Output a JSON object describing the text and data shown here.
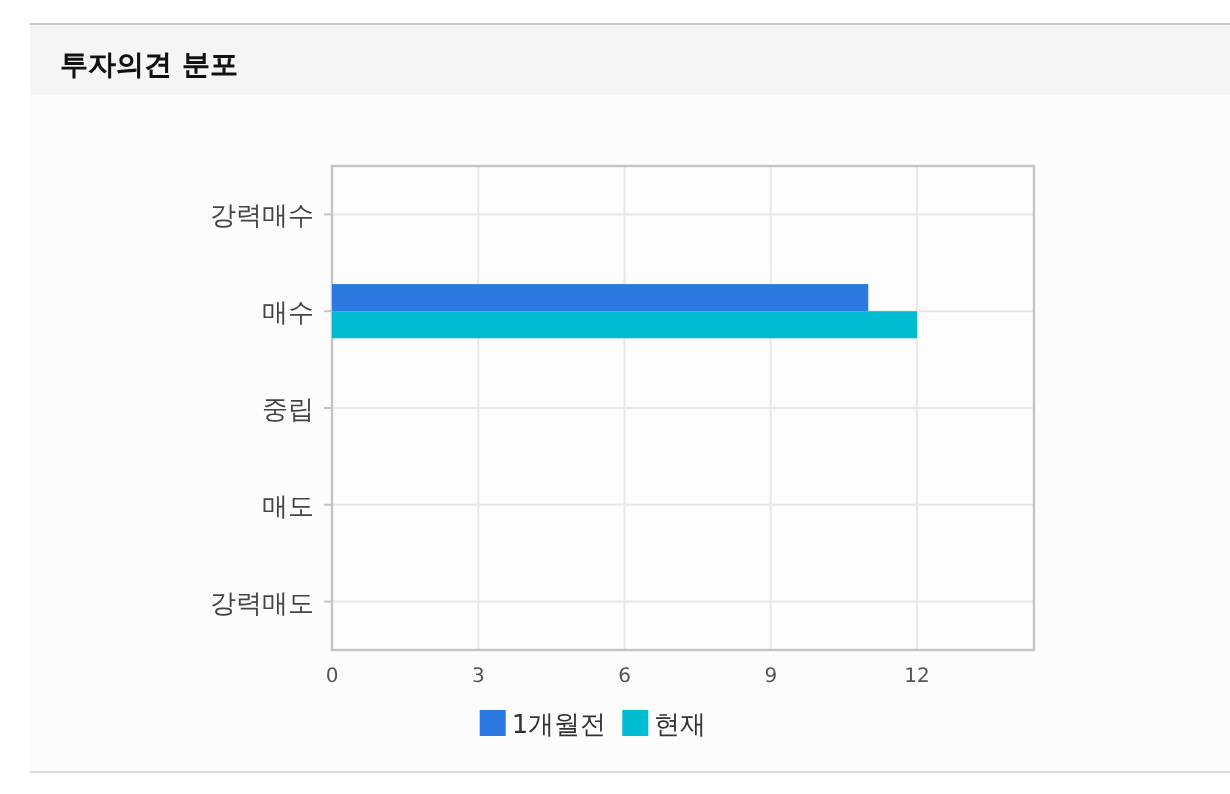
{
  "chart_data": {
    "type": "bar",
    "orientation": "horizontal",
    "title": "투자의견 분포",
    "categories": [
      "강력매수",
      "매수",
      "중립",
      "매도",
      "강력매도"
    ],
    "series": [
      {
        "name": "1개월전",
        "color": "#2b78e0",
        "values": [
          0,
          11,
          0,
          0,
          0
        ]
      },
      {
        "name": "현재",
        "color": "#00bcd0",
        "values": [
          0,
          12,
          0,
          0,
          0
        ]
      }
    ],
    "xlim": [
      0,
      14.4
    ],
    "xticks": [
      0,
      3,
      6,
      9,
      12
    ],
    "grid": true,
    "legend": "bottom"
  }
}
